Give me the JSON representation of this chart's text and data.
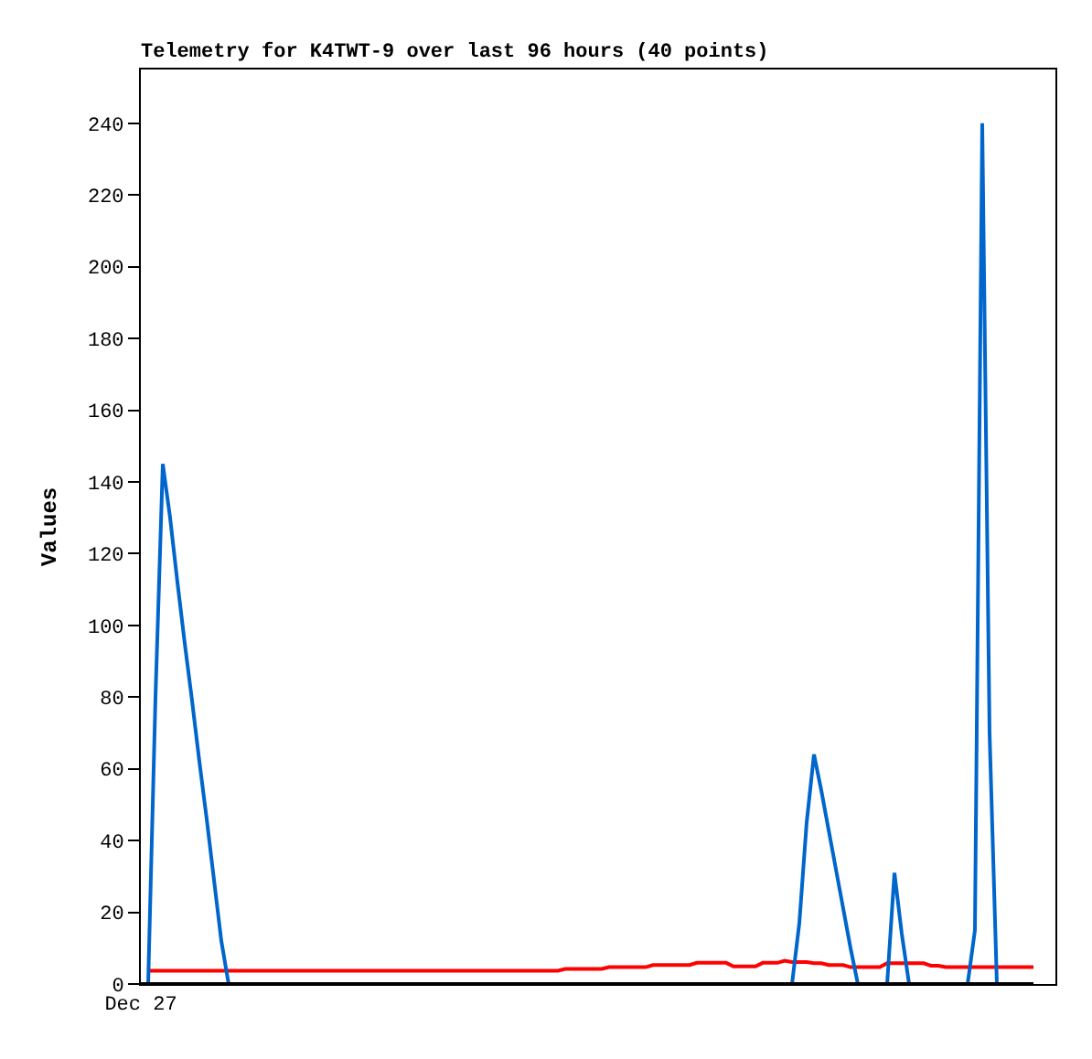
{
  "chart_data": {
    "type": "line",
    "title": "Telemetry for K4TWT-9 over last 96 hours (40 points)",
    "ylabel": "Values",
    "categories": [
      "Dec 27",
      null,
      null,
      null,
      null,
      null,
      null,
      null,
      null,
      null,
      null,
      null,
      null,
      null,
      null,
      null,
      null,
      null,
      null,
      null,
      null,
      null,
      null,
      null,
      null,
      null,
      null,
      null,
      null,
      null,
      null,
      null,
      null,
      null,
      null,
      null,
      null,
      null,
      null,
      null,
      null,
      null,
      null,
      null,
      null,
      null,
      null,
      null,
      null,
      null,
      null,
      null,
      null,
      null,
      null,
      null,
      null,
      null,
      null,
      null,
      null,
      null,
      null,
      null,
      null,
      null,
      null,
      null,
      null,
      null,
      null,
      null,
      null,
      null,
      null,
      null,
      null,
      null,
      null,
      null,
      null,
      null,
      null,
      null,
      null,
      null,
      null,
      null,
      null,
      null,
      null,
      null,
      null,
      null,
      null,
      null,
      null,
      null,
      null,
      null,
      null,
      null,
      null,
      null,
      null,
      null,
      null,
      null,
      null,
      null,
      null,
      null,
      null,
      null,
      null,
      null,
      null,
      null,
      null,
      null,
      null,
      null,
      null,
      null,
      null,
      null
    ],
    "series": [
      {
        "color": "#ff0000",
        "values": [
          null,
          3.7,
          3.7,
          3.7,
          3.7,
          3.7,
          3.7,
          3.7,
          3.7,
          3.7,
          3.7,
          3.7,
          3.7,
          3.7,
          3.7,
          3.7,
          3.7,
          3.7,
          3.7,
          3.7,
          3.7,
          3.7,
          3.7,
          3.7,
          3.7,
          3.7,
          3.7,
          3.7,
          3.7,
          3.7,
          3.7,
          3.7,
          3.7,
          3.7,
          3.7,
          3.7,
          3.7,
          3.7,
          3.7,
          3.7,
          3.7,
          3.7,
          3.7,
          3.7,
          3.7,
          3.7,
          3.7,
          3.7,
          3.7,
          3.7,
          3.7,
          3.7,
          3.7,
          3.7,
          3.7,
          3.7,
          3.7,
          3.7,
          4.2,
          4.2,
          4.2,
          4.2,
          4.2,
          4.2,
          4.7,
          4.7,
          4.7,
          4.7,
          4.7,
          4.7,
          5.3,
          5.3,
          5.3,
          5.3,
          5.3,
          5.3,
          5.9,
          5.9,
          5.9,
          5.9,
          5.9,
          4.9,
          4.9,
          4.9,
          4.9,
          5.9,
          5.9,
          5.9,
          6.5,
          6.1,
          6.1,
          6.1,
          5.8,
          5.8,
          5.3,
          5.3,
          5.3,
          4.7,
          4.7,
          4.7,
          4.7,
          4.7,
          5.8,
          5.8,
          5.8,
          5.8,
          5.8,
          5.8,
          5.1,
          5.1,
          4.7,
          4.7,
          4.7,
          4.7,
          4.7,
          4.7,
          4.7,
          4.7,
          4.7,
          4.7,
          4.7,
          4.7,
          4.7,
          null,
          null,
          null
        ]
      },
      {
        "color": "#0066cc",
        "values": [
          null,
          0,
          80,
          145,
          130,
          112,
          95,
          79,
          62,
          46,
          29,
          12,
          0,
          null,
          null,
          null,
          null,
          null,
          null,
          null,
          null,
          null,
          null,
          null,
          null,
          null,
          null,
          null,
          null,
          null,
          null,
          null,
          null,
          null,
          null,
          null,
          null,
          null,
          null,
          null,
          null,
          null,
          null,
          null,
          null,
          null,
          null,
          null,
          null,
          null,
          null,
          null,
          null,
          null,
          null,
          null,
          null,
          null,
          null,
          null,
          null,
          null,
          null,
          null,
          null,
          null,
          null,
          null,
          null,
          null,
          null,
          null,
          null,
          null,
          null,
          null,
          null,
          null,
          null,
          null,
          null,
          null,
          null,
          null,
          null,
          null,
          null,
          null,
          null,
          0,
          17,
          45,
          64,
          54,
          43,
          32,
          21,
          10,
          0,
          null,
          null,
          null,
          0,
          31,
          14,
          0,
          null,
          null,
          null,
          null,
          null,
          null,
          null,
          0,
          15,
          240,
          70,
          0,
          null,
          null,
          null,
          null,
          null,
          null,
          null,
          null
        ]
      },
      {
        "color": "#000000",
        "values": [
          0,
          0,
          0,
          0,
          0,
          0,
          0,
          0,
          0,
          0,
          0,
          0,
          0,
          0,
          0,
          0,
          0,
          0,
          0,
          0,
          0,
          0,
          0,
          0,
          0,
          0,
          0,
          0,
          0,
          0,
          0,
          0,
          0,
          0,
          0,
          0,
          0,
          0,
          0,
          0,
          0,
          0,
          0,
          0,
          0,
          0,
          0,
          0,
          0,
          0,
          0,
          0,
          0,
          0,
          0,
          0,
          0,
          0,
          0,
          0,
          0,
          0,
          0,
          0,
          0,
          0,
          0,
          0,
          0,
          0,
          0,
          0,
          0,
          0,
          0,
          0,
          0,
          0,
          0,
          0,
          0,
          0,
          0,
          0,
          0,
          0,
          0,
          0,
          0,
          0,
          0,
          0,
          0,
          0,
          0,
          0,
          0,
          0,
          0,
          0,
          0,
          0,
          0,
          0,
          0,
          0,
          0,
          0,
          0,
          0,
          0,
          0,
          0,
          0,
          0,
          0,
          0,
          0,
          0,
          0,
          0,
          0,
          0,
          null,
          null,
          null
        ]
      }
    ],
    "ylim": [
      0,
      255
    ],
    "yticks": [
      0,
      20,
      40,
      60,
      80,
      100,
      120,
      140,
      160,
      180,
      200,
      220,
      240
    ],
    "marker": "none",
    "line_style": "solid"
  }
}
